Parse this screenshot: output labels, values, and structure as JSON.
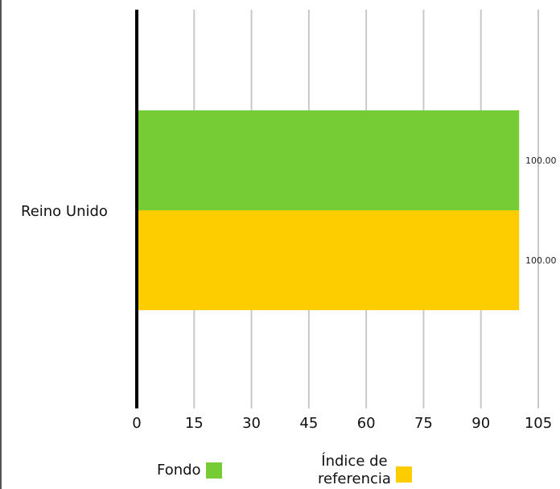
{
  "chart_data": {
    "type": "bar",
    "orientation": "horizontal",
    "categories": [
      "Reino Unido"
    ],
    "series": [
      {
        "name": "Fondo",
        "values": [
          100.0
        ],
        "value_labels": [
          "100.00"
        ],
        "color": "#76cc35"
      },
      {
        "name": "Índice de referencia",
        "values": [
          100.0
        ],
        "value_labels": [
          "100.00"
        ],
        "color": "#fdcd00"
      }
    ],
    "xlim": [
      0,
      105
    ],
    "xticks": [
      "0",
      "15",
      "30",
      "45",
      "60",
      "75",
      "90",
      "105"
    ],
    "grid": true,
    "legend_position": "bottom"
  },
  "legend": {
    "fondo": "Fondo",
    "indice_line1": "Índice de",
    "indice_line2": "referencia"
  }
}
